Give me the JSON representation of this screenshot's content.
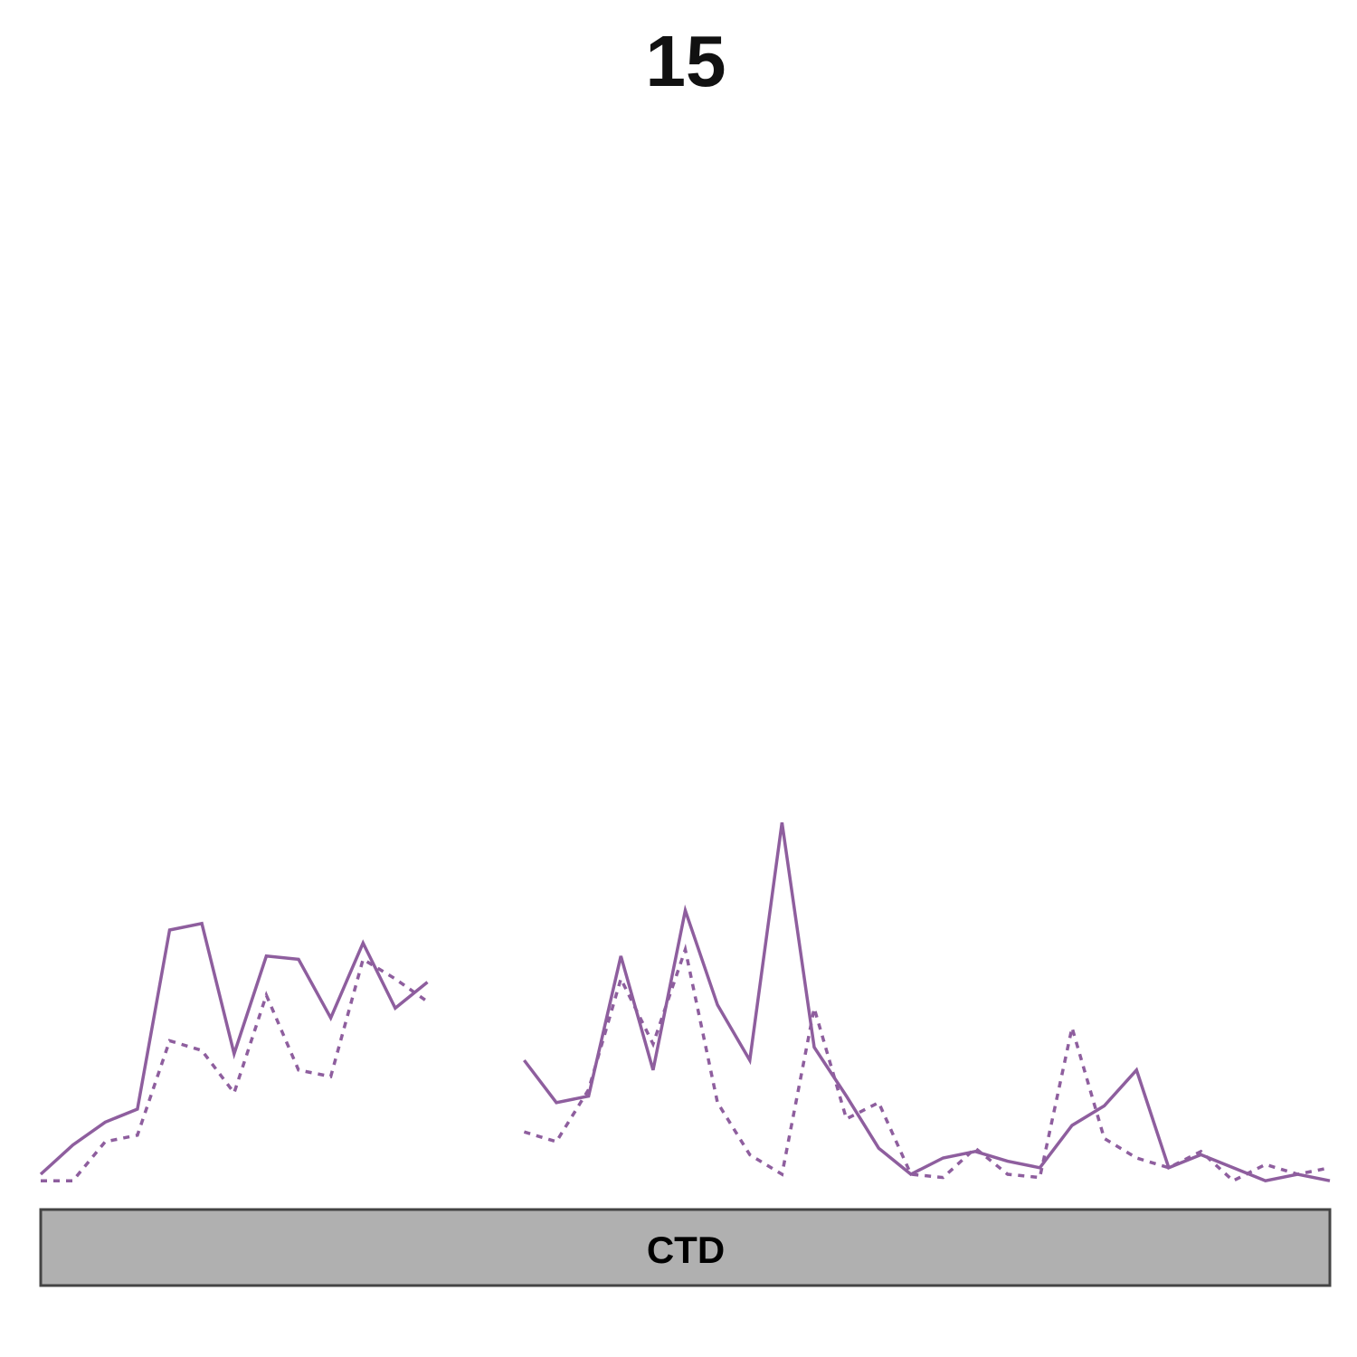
{
  "chart_data": {
    "type": "line",
    "title": "15",
    "xlabel": "",
    "ylabel": "",
    "x": [
      0,
      1,
      2,
      3,
      4,
      5,
      6,
      7,
      8,
      9,
      10,
      11,
      12,
      13,
      14,
      15,
      16,
      17,
      18,
      19,
      20,
      21,
      22,
      23,
      24,
      25,
      26,
      27,
      28,
      29,
      30,
      31,
      32,
      33,
      34,
      35,
      36,
      37,
      38,
      39,
      40
    ],
    "series": [
      {
        "line_style": "solid",
        "color": "#8e5e9e",
        "values": [
          0.0,
          0.9,
          1.6,
          2.0,
          7.5,
          7.7,
          3.7,
          6.7,
          6.6,
          4.8,
          7.1,
          5.1,
          5.9,
          null,
          null,
          3.5,
          2.2,
          2.4,
          6.7,
          3.2,
          8.1,
          5.2,
          3.5,
          10.8,
          3.9,
          2.4,
          0.8,
          0.0,
          0.5,
          0.7,
          0.4,
          0.2,
          1.5,
          2.1,
          3.2,
          0.2,
          0.6,
          0.2,
          -0.2,
          0.0,
          -0.2
        ]
      },
      {
        "line_style": "dotted",
        "color": "#8e5e9e",
        "values": [
          -0.2,
          -0.2,
          1.0,
          1.2,
          4.1,
          3.8,
          2.5,
          5.5,
          3.2,
          3.0,
          6.6,
          6.0,
          5.3,
          null,
          null,
          1.3,
          1.0,
          2.6,
          6.0,
          4.0,
          6.9,
          2.2,
          0.6,
          0.0,
          5.1,
          1.7,
          2.2,
          0.0,
          -0.1,
          0.8,
          0.0,
          -0.1,
          4.5,
          1.1,
          0.5,
          0.2,
          0.7,
          -0.2,
          0.3,
          0.0,
          0.2
        ]
      }
    ],
    "ylim": [
      -1,
      23
    ],
    "grid": false,
    "legend": "none",
    "domain_bar": {
      "label": "CTD",
      "fill_color": "#b0b0b0",
      "border_color": "#444444"
    }
  }
}
